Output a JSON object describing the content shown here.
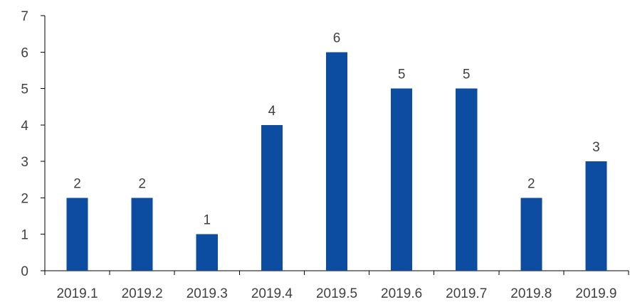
{
  "chart_data": {
    "type": "bar",
    "title": "",
    "xlabel": "",
    "ylabel": "",
    "categories": [
      "2019.1",
      "2019.2",
      "2019.3",
      "2019.4",
      "2019.5",
      "2019.6",
      "2019.7",
      "2019.8",
      "2019.9"
    ],
    "values": [
      2,
      2,
      1,
      4,
      6,
      5,
      5,
      2,
      3
    ],
    "ylim": [
      0,
      7
    ],
    "yticks": [
      0,
      1,
      2,
      3,
      4,
      5,
      6,
      7
    ],
    "data_labels": true,
    "grid": false,
    "legend": "none",
    "colors": {
      "bar": "#0C4DA2",
      "text": "#404040",
      "axis": "#000000"
    }
  }
}
